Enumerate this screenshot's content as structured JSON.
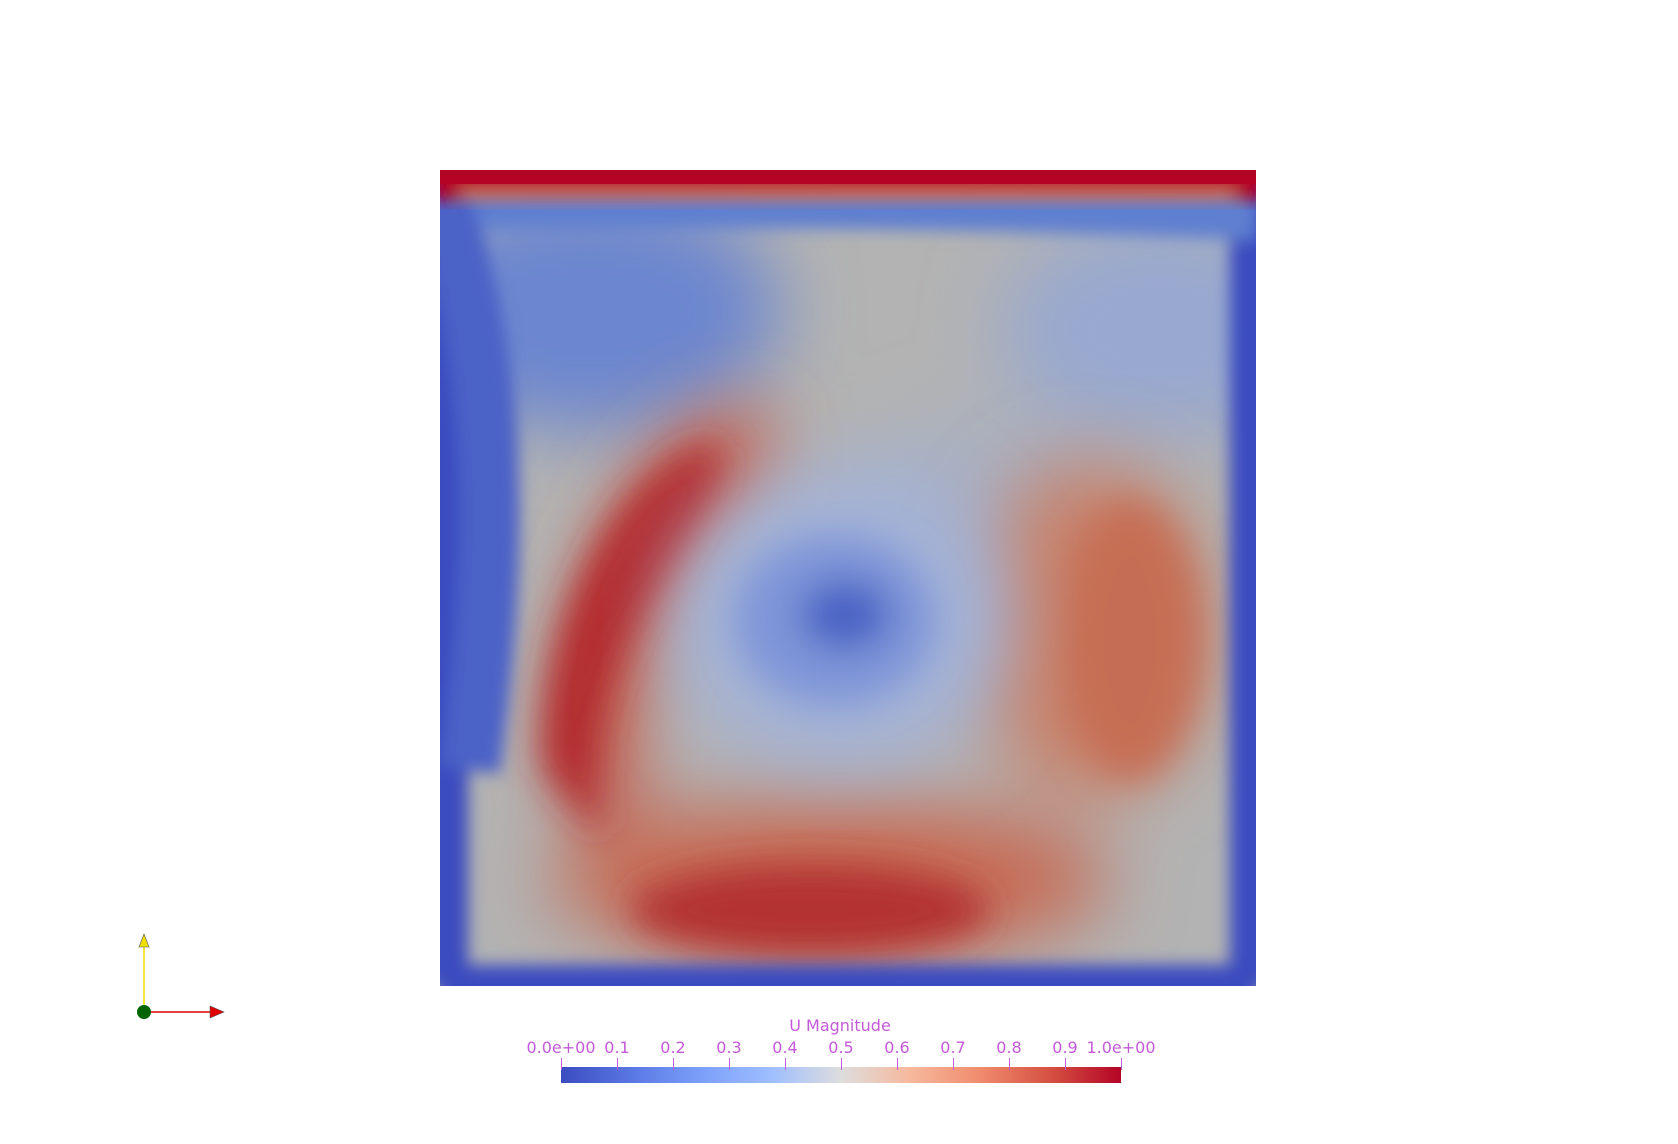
{
  "view": {
    "field_name": "U Magnitude",
    "colormap": {
      "name": "Cool to Warm",
      "low_color": "#3b4cc0",
      "mid_color": "#dddddd",
      "high_color": "#b40426"
    },
    "range": [
      0,
      1
    ]
  },
  "colorbar": {
    "title": "U Magnitude",
    "ticks": [
      {
        "label": "0.0e+00",
        "value": 0.0
      },
      {
        "label": "0.1",
        "value": 0.1
      },
      {
        "label": "0.2",
        "value": 0.2
      },
      {
        "label": "0.3",
        "value": 0.3
      },
      {
        "label": "0.4",
        "value": 0.4
      },
      {
        "label": "0.5",
        "value": 0.5
      },
      {
        "label": "0.6",
        "value": 0.6
      },
      {
        "label": "0.7",
        "value": 0.7
      },
      {
        "label": "0.8",
        "value": 0.8
      },
      {
        "label": "0.9",
        "value": 0.9
      },
      {
        "label": "1.0e+00",
        "value": 1.0
      }
    ]
  },
  "axes": {
    "x_color": "#e00000",
    "y_color": "#f0e000",
    "z_color": "#006400",
    "x_icon": "x-axis-arrow-icon",
    "y_icon": "y-axis-arrow-icon",
    "z_icon": "z-axis-dot-icon"
  }
}
